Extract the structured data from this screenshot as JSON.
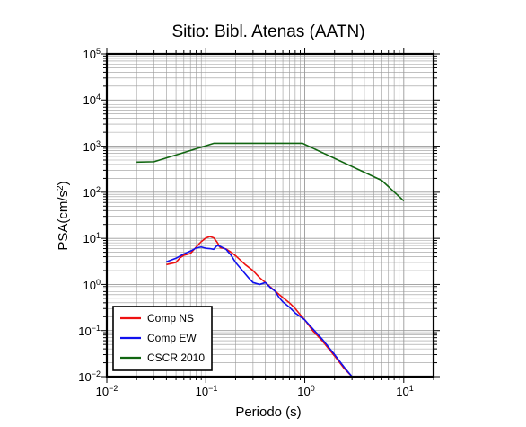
{
  "chart_data": {
    "type": "line",
    "title": "Sitio: Bibl. Atenas (AATN)",
    "xlabel": "Periodo (s)",
    "ylabel": {
      "base": "PSA(cm/s",
      "sup": "2",
      "tail": ")"
    },
    "xscale": "log",
    "yscale": "log",
    "xlim": [
      0.01,
      20
    ],
    "ylim": [
      0.01,
      100000
    ],
    "grid": true,
    "legend_position": "bottom-left",
    "x_ticks": [
      {
        "value": 0.01,
        "base": "10",
        "exp": "−2"
      },
      {
        "value": 0.1,
        "base": "10",
        "exp": "−1"
      },
      {
        "value": 1,
        "base": "10",
        "exp": "0"
      },
      {
        "value": 10,
        "base": "10",
        "exp": "1"
      }
    ],
    "y_ticks": [
      {
        "value": 0.01,
        "base": "10",
        "exp": "−2"
      },
      {
        "value": 0.1,
        "base": "10",
        "exp": "−1"
      },
      {
        "value": 1,
        "base": "10",
        "exp": "0"
      },
      {
        "value": 10,
        "base": "10",
        "exp": "1"
      },
      {
        "value": 100,
        "base": "10",
        "exp": "2"
      },
      {
        "value": 1000,
        "base": "10",
        "exp": "3"
      },
      {
        "value": 10000,
        "base": "10",
        "exp": "4"
      },
      {
        "value": 100000,
        "base": "10",
        "exp": "5"
      }
    ],
    "series": [
      {
        "name": "Comp NS",
        "color": "#ee1111",
        "points": [
          [
            0.04,
            2.7
          ],
          [
            0.05,
            3.0
          ],
          [
            0.055,
            3.8
          ],
          [
            0.06,
            4.3
          ],
          [
            0.07,
            4.7
          ],
          [
            0.08,
            6.5
          ],
          [
            0.09,
            8.5
          ],
          [
            0.1,
            10.2
          ],
          [
            0.11,
            11.0
          ],
          [
            0.12,
            10.3
          ],
          [
            0.13,
            8.3
          ],
          [
            0.14,
            6.3
          ],
          [
            0.16,
            5.9
          ],
          [
            0.18,
            5.0
          ],
          [
            0.2,
            4.2
          ],
          [
            0.25,
            2.7
          ],
          [
            0.3,
            2.0
          ],
          [
            0.35,
            1.4
          ],
          [
            0.4,
            1.1
          ],
          [
            0.5,
            0.72
          ],
          [
            0.6,
            0.52
          ],
          [
            0.7,
            0.4
          ],
          [
            0.8,
            0.3
          ],
          [
            0.9,
            0.22
          ],
          [
            1.0,
            0.17
          ],
          [
            1.2,
            0.1
          ],
          [
            1.5,
            0.06
          ],
          [
            2.0,
            0.028
          ],
          [
            2.5,
            0.015
          ],
          [
            3.0,
            0.01
          ]
        ]
      },
      {
        "name": "Comp EW",
        "color": "#1111ee",
        "points": [
          [
            0.04,
            3.1
          ],
          [
            0.045,
            3.4
          ],
          [
            0.05,
            3.7
          ],
          [
            0.06,
            4.6
          ],
          [
            0.07,
            5.3
          ],
          [
            0.08,
            6.2
          ],
          [
            0.09,
            6.5
          ],
          [
            0.1,
            6.1
          ],
          [
            0.11,
            6.0
          ],
          [
            0.12,
            5.8
          ],
          [
            0.13,
            7.0
          ],
          [
            0.14,
            6.7
          ],
          [
            0.16,
            5.8
          ],
          [
            0.18,
            4.3
          ],
          [
            0.2,
            3.0
          ],
          [
            0.23,
            2.1
          ],
          [
            0.27,
            1.4
          ],
          [
            0.3,
            1.1
          ],
          [
            0.35,
            1.0
          ],
          [
            0.4,
            1.1
          ],
          [
            0.45,
            0.85
          ],
          [
            0.5,
            0.72
          ],
          [
            0.55,
            0.52
          ],
          [
            0.6,
            0.42
          ],
          [
            0.7,
            0.32
          ],
          [
            0.8,
            0.24
          ],
          [
            0.9,
            0.2
          ],
          [
            1.0,
            0.17
          ],
          [
            1.2,
            0.11
          ],
          [
            1.5,
            0.065
          ],
          [
            2.0,
            0.03
          ],
          [
            2.5,
            0.016
          ],
          [
            3.0,
            0.01
          ]
        ]
      },
      {
        "name": "CSCR 2010",
        "color": "#116611",
        "points": [
          [
            0.02,
            450
          ],
          [
            0.03,
            460
          ],
          [
            0.12,
            1150
          ],
          [
            0.95,
            1150
          ],
          [
            6.0,
            180
          ],
          [
            10.0,
            65
          ]
        ]
      }
    ]
  }
}
